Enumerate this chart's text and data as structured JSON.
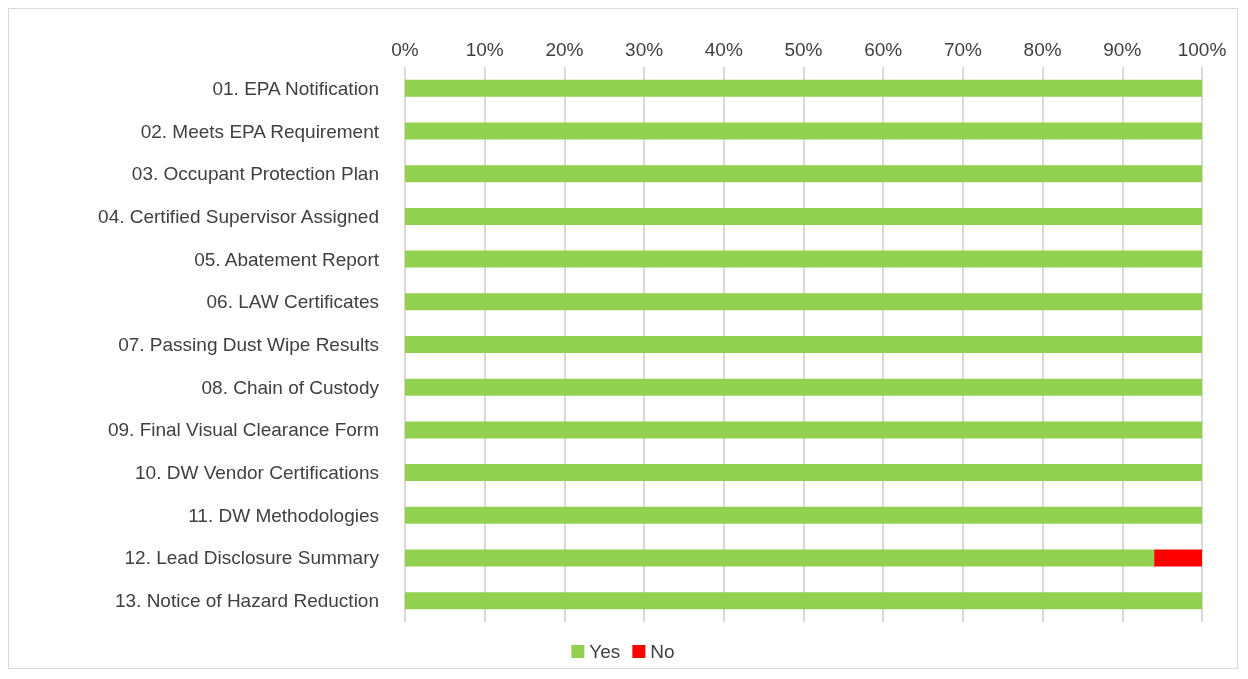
{
  "chart_data": {
    "type": "bar",
    "orientation": "horizontal",
    "stacked": true,
    "categories": [
      "01. EPA Notification",
      "02. Meets EPA Requirement",
      "03. Occupant Protection Plan",
      "04. Certified Supervisor Assigned",
      "05. Abatement Report",
      "06. LAW Certificates",
      "07. Passing Dust Wipe Results",
      "08. Chain of Custody",
      "09. Final Visual Clearance Form",
      "10. DW Vendor Certifications",
      "11. DW Methodologies",
      "12. Lead Disclosure Summary",
      "13. Notice of Hazard Reduction"
    ],
    "series": [
      {
        "name": "Yes",
        "color": "#92d050",
        "values": [
          100,
          100,
          100,
          100,
          100,
          100,
          100,
          100,
          100,
          100,
          100,
          94,
          100
        ]
      },
      {
        "name": "No",
        "color": "#ff0000",
        "values": [
          0,
          0,
          0,
          0,
          0,
          0,
          0,
          0,
          0,
          0,
          0,
          6,
          0
        ]
      }
    ],
    "xlim": [
      0,
      100
    ],
    "xticks": [
      {
        "value": 0,
        "label": "0%"
      },
      {
        "value": 10,
        "label": "10%"
      },
      {
        "value": 20,
        "label": "20%"
      },
      {
        "value": 30,
        "label": "30%"
      },
      {
        "value": 40,
        "label": "40%"
      },
      {
        "value": 50,
        "label": "50%"
      },
      {
        "value": 60,
        "label": "60%"
      },
      {
        "value": 70,
        "label": "70%"
      },
      {
        "value": 80,
        "label": "80%"
      },
      {
        "value": 90,
        "label": "90%"
      },
      {
        "value": 100,
        "label": "100%"
      }
    ],
    "grid": "x",
    "legend": "bottom"
  }
}
